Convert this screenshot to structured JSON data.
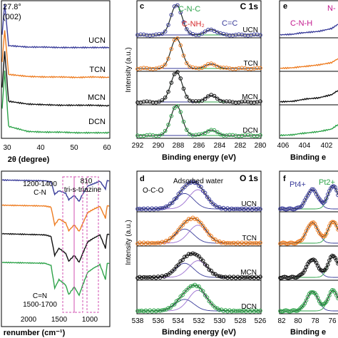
{
  "figure": {
    "panels": {
      "a": {
        "id": "",
        "peak_label": "27.8°",
        "peak_hkl": "(002)",
        "xlabel": "2θ (degree)",
        "ticks": [
          "30",
          "40",
          "50",
          "60"
        ],
        "samples": [
          "UCN",
          "TCN",
          "MCN",
          "DCN"
        ]
      },
      "b": {
        "id": "",
        "xlabel": "renumber (cm⁻¹)",
        "ticks": [
          "2000",
          "1500",
          "1000"
        ],
        "annotations": [
          "1200-1400",
          "C-N",
          "810",
          "tri-s-triazine",
          "C=N",
          "1500-1700"
        ]
      },
      "c": {
        "id": "c",
        "element": "C 1s",
        "ylabel": "Intensity (a.u.)",
        "xlabel": "Binding energy (eV)",
        "ticks": [
          "292",
          "290",
          "288",
          "286",
          "284",
          "282",
          "280"
        ],
        "peak_labels": [
          "C-N-C",
          "C-NH₂",
          "C=C"
        ],
        "samples": [
          "UCN",
          "TCN",
          "MCN",
          "DCN"
        ]
      },
      "d": {
        "id": "d",
        "element": "O 1s",
        "ylabel": "Intensity (a.u.)",
        "xlabel": "Binding energy (eV)",
        "ticks": [
          "538",
          "536",
          "534",
          "532",
          "530",
          "528",
          "526"
        ],
        "peak_labels": [
          "O-C-O",
          "Adsorbed water"
        ],
        "samples": [
          "UCN",
          "TCN",
          "MCN",
          "DCN"
        ]
      },
      "e": {
        "id": "e",
        "xlabel": "Binding e",
        "ticks": [
          "406",
          "404",
          "402"
        ],
        "peak_labels": [
          "N-",
          "C-N-H"
        ]
      },
      "f": {
        "id": "f",
        "xlabel": "Binding e",
        "ticks": [
          "82",
          "80",
          "78",
          "76"
        ],
        "peak_labels": [
          "Pt4+",
          "Pt2+"
        ]
      }
    },
    "colors": {
      "UCN": "#3a3d9a",
      "TCN": "#ee7d22",
      "MCN": "#111111",
      "DCN": "#2ea34a",
      "c_n_c": "#2ea34a",
      "c_nh2": "#d6282b",
      "c_eq_c": "#3a3d9a",
      "n_label": "#c2178c",
      "adsorbed_water_fit": "#9b6fd1",
      "annotation_box": "#d04fb0"
    }
  },
  "chart_data": [
    {
      "type": "line",
      "panel": "a",
      "xlabel": "2θ (degree)",
      "xlim": [
        27,
        60
      ],
      "series": [
        {
          "name": "UCN",
          "x": [
            27,
            27.8,
            29,
            35,
            40,
            45,
            50,
            55,
            60
          ],
          "y": [
            0.3,
            0.95,
            0.06,
            0.03,
            0.03,
            0.02,
            0.02,
            0.02,
            0.02
          ]
        },
        {
          "name": "TCN",
          "x": [
            27,
            27.8,
            29,
            35,
            40,
            45,
            50,
            55,
            60
          ],
          "y": [
            0.34,
            0.96,
            0.08,
            0.04,
            0.03,
            0.03,
            0.02,
            0.03,
            0.02
          ]
        },
        {
          "name": "MCN",
          "x": [
            27,
            27.8,
            29,
            35,
            40,
            45,
            50,
            55,
            60
          ],
          "y": [
            0.35,
            0.97,
            0.1,
            0.05,
            0.04,
            0.03,
            0.03,
            0.03,
            0.02
          ]
        },
        {
          "name": "DCN",
          "x": [
            27,
            27.8,
            29,
            35,
            40,
            45,
            50,
            55,
            60
          ],
          "y": [
            0.4,
            0.98,
            0.12,
            0.04,
            0.03,
            0.03,
            0.02,
            0.02,
            0.02
          ]
        }
      ]
    },
    {
      "type": "line",
      "panel": "b",
      "xlabel": "renumber (cm⁻¹)",
      "xlim": [
        2500,
        750
      ],
      "x_reversed": true,
      "series": [
        {
          "name": "UCN",
          "x": [
            2500,
            1800,
            1700,
            1640,
            1570,
            1460,
            1410,
            1320,
            1240,
            1200,
            1100,
            1000,
            900,
            810,
            780,
            750
          ],
          "y": [
            0.95,
            0.93,
            0.9,
            0.55,
            0.65,
            0.58,
            0.4,
            0.52,
            0.35,
            0.5,
            0.78,
            0.85,
            0.92,
            0.7,
            0.94,
            0.92
          ]
        },
        {
          "name": "TCN",
          "x": [
            2500,
            1800,
            1700,
            1640,
            1570,
            1460,
            1410,
            1320,
            1240,
            1200,
            1100,
            1000,
            900,
            810,
            780,
            750
          ],
          "y": [
            0.95,
            0.93,
            0.9,
            0.45,
            0.6,
            0.5,
            0.3,
            0.45,
            0.28,
            0.42,
            0.76,
            0.85,
            0.92,
            0.62,
            0.94,
            0.92
          ]
        },
        {
          "name": "MCN",
          "x": [
            2500,
            1800,
            1700,
            1640,
            1570,
            1460,
            1410,
            1320,
            1240,
            1200,
            1100,
            1000,
            900,
            810,
            780,
            750
          ],
          "y": [
            0.95,
            0.92,
            0.88,
            0.4,
            0.58,
            0.45,
            0.25,
            0.4,
            0.22,
            0.38,
            0.74,
            0.84,
            0.92,
            0.58,
            0.94,
            0.92
          ]
        },
        {
          "name": "DCN",
          "x": [
            2500,
            1800,
            1700,
            1640,
            1570,
            1460,
            1410,
            1320,
            1240,
            1200,
            1100,
            1000,
            900,
            810,
            780,
            750
          ],
          "y": [
            0.95,
            0.93,
            0.88,
            0.35,
            0.55,
            0.42,
            0.2,
            0.38,
            0.18,
            0.35,
            0.72,
            0.82,
            0.9,
            0.55,
            0.93,
            0.92
          ]
        }
      ]
    },
    {
      "type": "line",
      "panel": "c",
      "xlabel": "Binding energy (eV)",
      "ylabel": "Intensity (a.u.)",
      "xlim": [
        292,
        280
      ],
      "x_reversed": true,
      "peaks": [
        {
          "name": "C-N-C",
          "center": 288.2,
          "sigma": 0.55
        },
        {
          "name": "C=C",
          "center": 284.8,
          "sigma": 0.55
        }
      ],
      "series": [
        {
          "name": "UCN",
          "amplitudes": [
            1.0,
            0.18
          ]
        },
        {
          "name": "TCN",
          "amplitudes": [
            1.0,
            0.15
          ]
        },
        {
          "name": "MCN",
          "amplitudes": [
            1.0,
            0.22
          ]
        },
        {
          "name": "DCN",
          "amplitudes": [
            1.0,
            0.18
          ]
        }
      ]
    },
    {
      "type": "line",
      "panel": "d",
      "xlabel": "Binding energy (eV)",
      "ylabel": "Intensity (a.u.)",
      "xlim": [
        538,
        526
      ],
      "x_reversed": true,
      "peaks": [
        {
          "name": "O-C-O",
          "center": 533.4,
          "sigma": 0.9
        },
        {
          "name": "Adsorbed water",
          "center": 532.1,
          "sigma": 0.9
        }
      ],
      "series": [
        {
          "name": "UCN",
          "amplitudes": [
            0.6,
            0.75
          ]
        },
        {
          "name": "TCN",
          "amplitudes": [
            0.55,
            0.7
          ]
        },
        {
          "name": "MCN",
          "amplitudes": [
            0.55,
            0.65
          ]
        },
        {
          "name": "DCN",
          "amplitudes": [
            0.45,
            0.8
          ]
        }
      ]
    },
    {
      "type": "line",
      "panel": "e",
      "xlabel": "Binding e",
      "xlim": [
        406,
        401.5
      ],
      "x_reversed": true,
      "series": [
        {
          "name": "UCN",
          "x": [
            406,
            405,
            404.5,
            404,
            403,
            402,
            401.5
          ],
          "y": [
            0.08,
            0.1,
            0.14,
            0.16,
            0.2,
            0.3,
            0.45
          ]
        },
        {
          "name": "TCN",
          "x": [
            406,
            405,
            404.5,
            404,
            403,
            402,
            401.5
          ],
          "y": [
            0.08,
            0.1,
            0.13,
            0.15,
            0.2,
            0.28,
            0.42
          ]
        },
        {
          "name": "MCN",
          "x": [
            406,
            405,
            404.5,
            404,
            403,
            402,
            401.5
          ],
          "y": [
            0.08,
            0.1,
            0.14,
            0.18,
            0.22,
            0.33,
            0.48
          ]
        },
        {
          "name": "DCN",
          "x": [
            406,
            405,
            404.5,
            404,
            403,
            402,
            401.5
          ],
          "y": [
            0.08,
            0.1,
            0.14,
            0.16,
            0.21,
            0.3,
            0.46
          ]
        }
      ]
    },
    {
      "type": "line",
      "panel": "f",
      "xlabel": "Binding e",
      "xlim": [
        82,
        75
      ],
      "x_reversed": true,
      "peaks": [
        {
          "name": "Pt4+",
          "center": 78.1,
          "sigma": 0.7
        },
        {
          "name": "Pt2+",
          "center": 75.6,
          "sigma": 0.6
        }
      ],
      "series": [
        {
          "name": "UCN",
          "amplitudes": [
            0.75,
            0.9
          ]
        },
        {
          "name": "TCN",
          "amplitudes": [
            0.8,
            0.85
          ]
        },
        {
          "name": "MCN",
          "amplitudes": [
            0.7,
            0.85
          ]
        },
        {
          "name": "DCN",
          "amplitudes": [
            0.75,
            0.8
          ]
        }
      ]
    }
  ]
}
